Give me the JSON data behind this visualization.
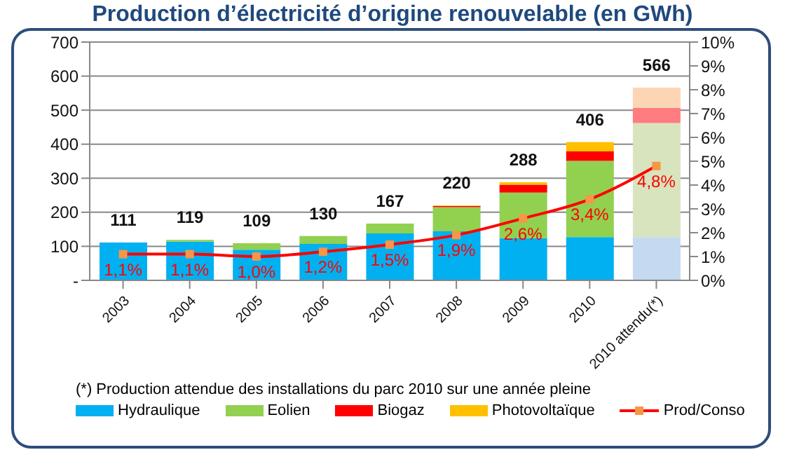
{
  "chart_data": {
    "type": "bar",
    "title": "Production d’électricité d’origine renouvelable (en GWh)",
    "categories": [
      "2003",
      "2004",
      "2005",
      "2006",
      "2007",
      "2008",
      "2009",
      "2010",
      "2010 attendu(*)"
    ],
    "stacked": true,
    "series": [
      {
        "name": "Hydraulique",
        "color": "#00b0f0",
        "colors": [
          "#00b0f0",
          "#00b0f0",
          "#00b0f0",
          "#00b0f0",
          "#00b0f0",
          "#00b0f0",
          "#00b0f0",
          "#00b0f0",
          "#c5d9f1"
        ],
        "values": [
          111,
          114,
          90,
          107,
          138,
          144,
          124,
          127,
          127
        ]
      },
      {
        "name": "Eolien",
        "color": "#92d050",
        "colors": [
          "#92d050",
          "#92d050",
          "#92d050",
          "#92d050",
          "#92d050",
          "#92d050",
          "#92d050",
          "#92d050",
          "#d7e4bd"
        ],
        "values": [
          0,
          5,
          19,
          23,
          29,
          71,
          134,
          224,
          335
        ]
      },
      {
        "name": "Biogaz",
        "color": "#ff0000",
        "colors": [
          "#ff0000",
          "#ff0000",
          "#ff0000",
          "#ff0000",
          "#ff0000",
          "#ff0000",
          "#ff0000",
          "#ff0000",
          "#ff7c80"
        ],
        "values": [
          0,
          0,
          0,
          0,
          0,
          3,
          23,
          28,
          45
        ]
      },
      {
        "name": "Photovoltaïque",
        "color": "#ffc000",
        "colors": [
          "#ffc000",
          "#ffc000",
          "#ffc000",
          "#ffc000",
          "#ffc000",
          "#ffc000",
          "#ffc000",
          "#ffc000",
          "#fcd5b5"
        ],
        "values": [
          0,
          0,
          0,
          0,
          0,
          2,
          7,
          27,
          59
        ]
      },
      {
        "name": "Prod/Conso",
        "type": "line",
        "axis": "y2",
        "color": "#ff0000",
        "marker": "square",
        "values": [
          1.1,
          1.1,
          1.0,
          1.2,
          1.5,
          1.9,
          2.6,
          3.4,
          4.8
        ],
        "value_labels": [
          "1,1%",
          "1,1%",
          "1,0%",
          "1,2%",
          "1,5%",
          "1,9%",
          "2,6%",
          "3,4%",
          "4,8%"
        ]
      }
    ],
    "totals": [
      "111",
      "119",
      "109",
      "130",
      "167",
      "220",
      "288",
      "406",
      "566"
    ],
    "ylim": [
      0,
      700
    ],
    "yticks": [
      {
        "value": 0,
        "label": "-"
      },
      100,
      200,
      300,
      400,
      500,
      600,
      700
    ],
    "y2lim": [
      0,
      10
    ],
    "y2ticks": [
      {
        "value": 0,
        "label": "0%"
      },
      {
        "value": 1,
        "label": "1%"
      },
      {
        "value": 2,
        "label": "2%"
      },
      {
        "value": 3,
        "label": "3%"
      },
      {
        "value": 4,
        "label": "4%"
      },
      {
        "value": 5,
        "label": "5%"
      },
      {
        "value": 6,
        "label": "6%"
      },
      {
        "value": 7,
        "label": "7%"
      },
      {
        "value": 8,
        "label": "8%"
      },
      {
        "value": 9,
        "label": "9%"
      },
      {
        "value": 10,
        "label": "10%"
      }
    ],
    "grid": "y",
    "legend": "bottom",
    "annotations": [
      "(*) Production attendue des installations du parc 2010 sur une année pleine"
    ]
  }
}
